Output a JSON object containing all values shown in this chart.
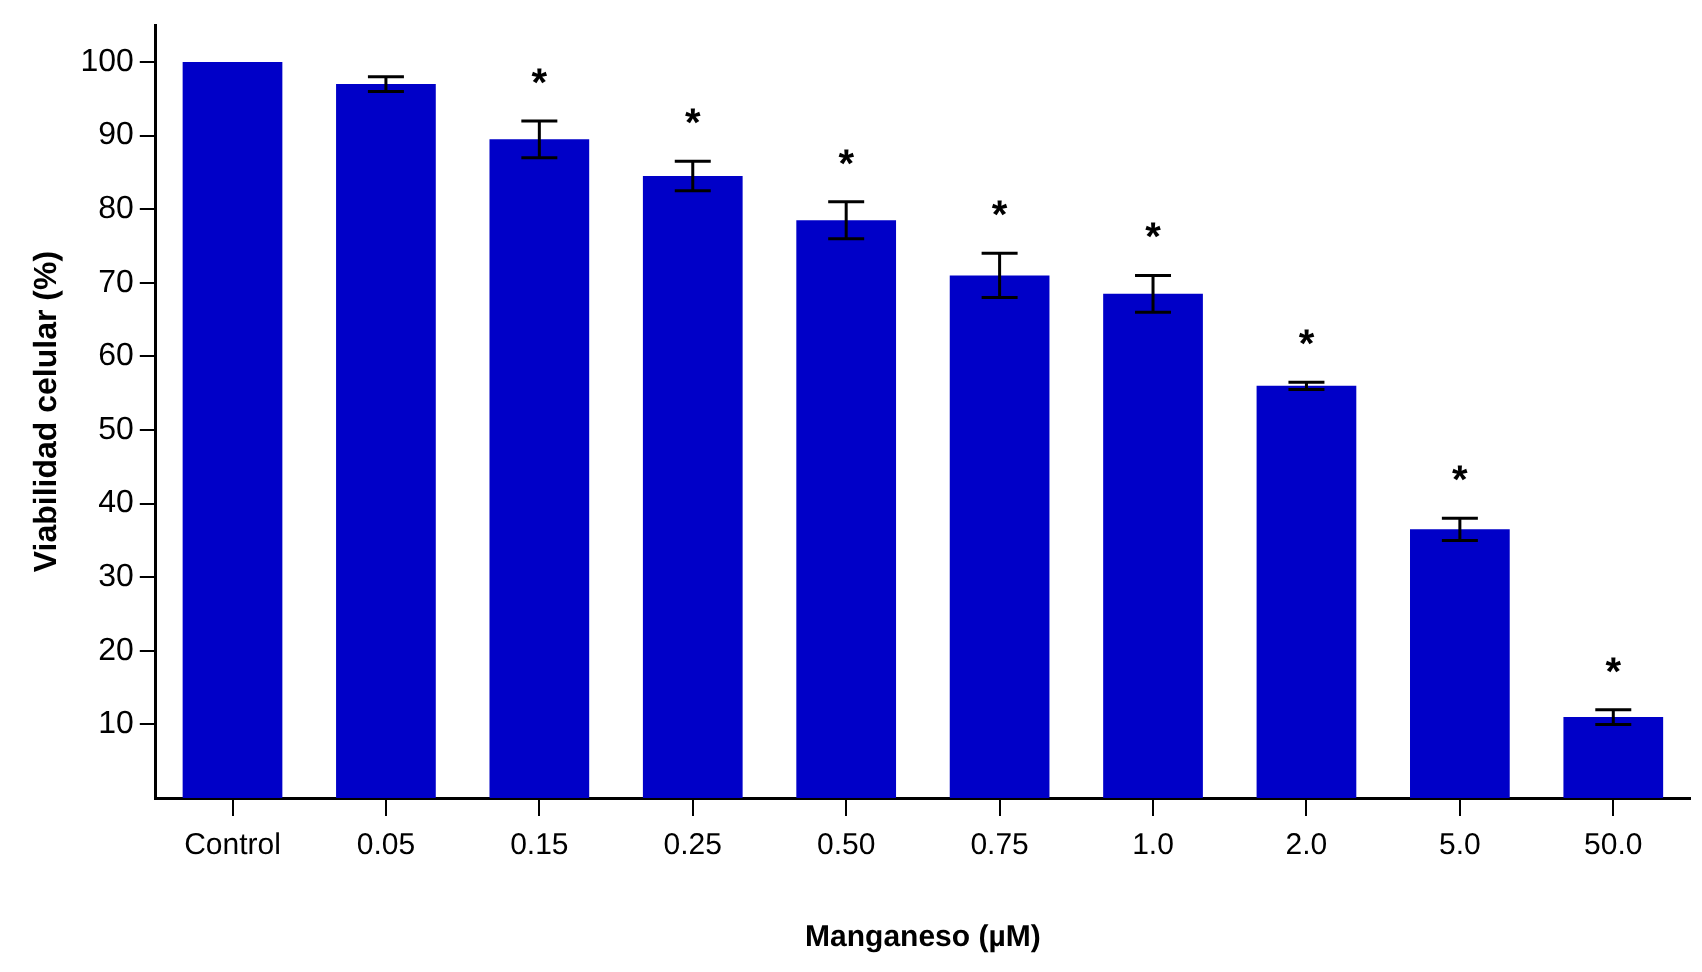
{
  "chart_data": {
    "type": "bar",
    "xlabel": "Manganeso (µM)",
    "ylabel": "Viabilidad celular (%)",
    "categories": [
      "Control",
      "0.05",
      "0.15",
      "0.25",
      "0.50",
      "0.75",
      "1.0",
      "2.0",
      "5.0",
      "50.0"
    ],
    "values": [
      100,
      97,
      89.5,
      84.5,
      78.5,
      71,
      68.5,
      56,
      36.5,
      11
    ],
    "errors": [
      null,
      1,
      2.5,
      2,
      2.5,
      3,
      2.5,
      0.5,
      1.5,
      1
    ],
    "color": "#0000c8",
    "ylim": [
      0,
      105
    ],
    "yticks": [
      10,
      20,
      30,
      40,
      50,
      60,
      70,
      80,
      90,
      100
    ],
    "grid": false,
    "legend": false,
    "annotations": [
      {
        "text": "*",
        "x": "0.15",
        "y": 89.5
      },
      {
        "text": "*",
        "x": "0.25",
        "y": 84.5
      },
      {
        "text": "*",
        "x": "0.50",
        "y": 78.5
      },
      {
        "text": "*",
        "x": "0.75",
        "y": 71
      },
      {
        "text": "*",
        "x": "1.0",
        "y": 68.5
      },
      {
        "text": "*",
        "x": "2.0",
        "y": 56
      },
      {
        "text": "*",
        "x": "5.0",
        "y": 36.5
      },
      {
        "text": "*",
        "x": "50.0",
        "y": 11
      }
    ]
  }
}
